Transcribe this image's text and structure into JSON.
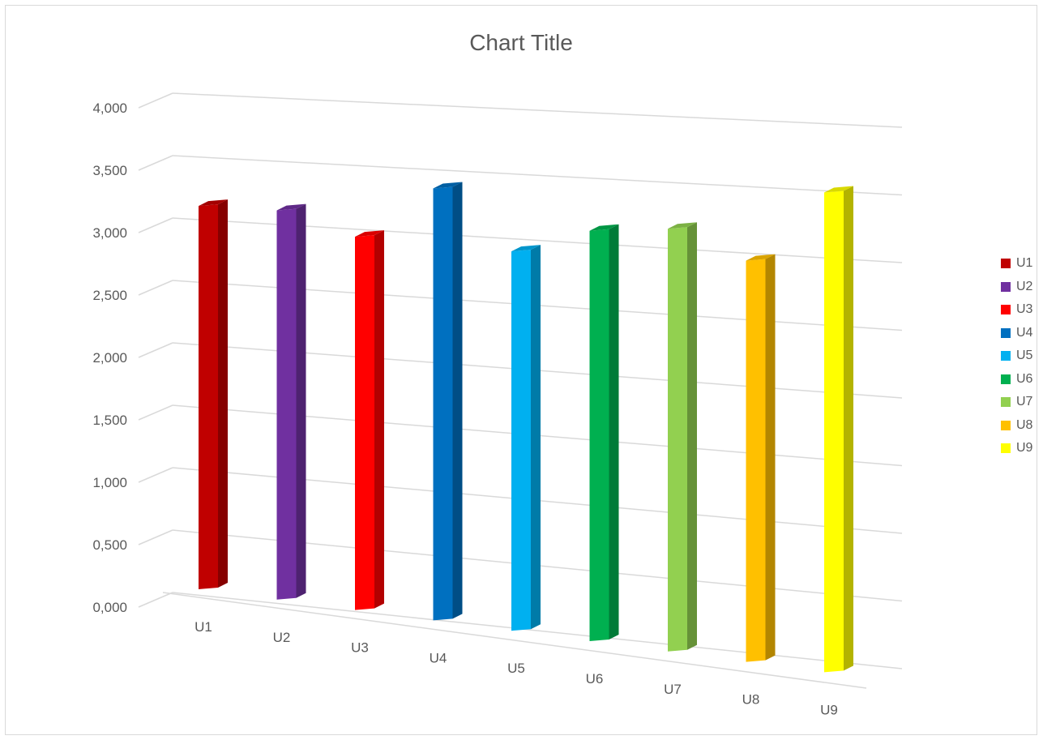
{
  "chart_data": {
    "type": "bar",
    "title": "Chart Title",
    "categories": [
      "U1",
      "U2",
      "U3",
      "U4",
      "U5",
      "U6",
      "U7",
      "U8",
      "U9"
    ],
    "values": [
      3250,
      3250,
      3070,
      3500,
      3030,
      3230,
      3280,
      3070,
      3620
    ],
    "colors": [
      "#c00000",
      "#7030a0",
      "#ff0000",
      "#0070c0",
      "#00b0f0",
      "#00b050",
      "#92d050",
      "#ffc000",
      "#ffff00"
    ],
    "y_ticks": [
      "0,000",
      "0,500",
      "1,000",
      "1,500",
      "2,000",
      "2,500",
      "3,000",
      "3,500",
      "4,000"
    ],
    "ylim": [
      0,
      4000
    ],
    "xlabel": "",
    "ylabel": "",
    "grid": true,
    "legend_position": "right",
    "legend": [
      "U1",
      "U2",
      "U3",
      "U4",
      "U5",
      "U6",
      "U7",
      "U8",
      "U9"
    ]
  }
}
